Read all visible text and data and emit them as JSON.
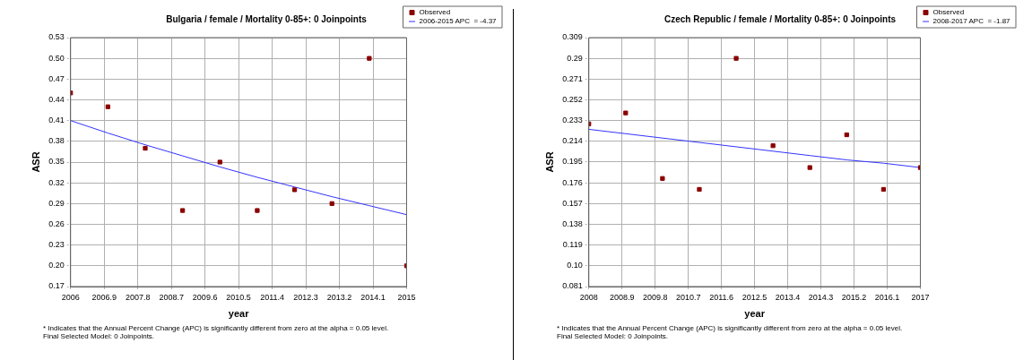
{
  "chart_data": [
    {
      "type": "scatter",
      "title": "Bulgaria / female / Mortality 0-85+: 0 Joinpoints",
      "xlabel": "year",
      "ylabel": "ASR",
      "x": [
        2006,
        2007,
        2008,
        2009,
        2010,
        2011,
        2012,
        2013,
        2014,
        2015
      ],
      "series": [
        {
          "name": "Observed",
          "type": "scatter",
          "color": "#8b0000",
          "marker": "square",
          "values": [
            0.45,
            0.43,
            0.37,
            0.28,
            0.35,
            0.28,
            0.31,
            0.29,
            0.5,
            0.2
          ]
        },
        {
          "name": "2006-2015 APC  = -4.37",
          "type": "line",
          "color": "#3333ff",
          "line_style": "solid",
          "marker": "none",
          "values": [
            0.41,
            0.392,
            0.375,
            0.359,
            0.343,
            0.328,
            0.314,
            0.3,
            0.287,
            0.274
          ]
        }
      ],
      "xlim": [
        2006,
        2015
      ],
      "xticks": [
        2006,
        2006.9,
        2007.8,
        2008.7,
        2009.6,
        2010.5,
        2011.4,
        2012.3,
        2013.2,
        2014.1,
        2015
      ],
      "ylim": [
        0.17,
        0.53
      ],
      "yticks": [
        0.17,
        {
          "value": 0.2,
          "label": "0.20"
        },
        0.23,
        0.26,
        0.29,
        0.32,
        0.35,
        0.38,
        0.41,
        0.44,
        0.47,
        {
          "value": 0.5,
          "label": "0.50"
        },
        0.53
      ],
      "grid": true,
      "legend": "top right",
      "annotations": [
        "* Indicates that the Annual Percent Change (APC) is significantly different from zero at the alpha = 0.05 level.",
        "Final Selected Model: 0 Joinpoints."
      ]
    },
    {
      "type": "scatter",
      "title": "Czech Republic / female / Mortality 0-85+: 0 Joinpoints",
      "xlabel": "year",
      "ylabel": "ASR",
      "x": [
        2008,
        2009,
        2010,
        2011,
        2012,
        2013,
        2014,
        2015,
        2016,
        2017
      ],
      "series": [
        {
          "name": "Observed",
          "type": "scatter",
          "color": "#8b0000",
          "marker": "square",
          "values": [
            0.23,
            0.24,
            0.18,
            0.17,
            0.29,
            0.21,
            0.19,
            0.22,
            0.17,
            0.19
          ]
        },
        {
          "name": "2008-2017 APC  = -1.87",
          "type": "line",
          "color": "#3333ff",
          "line_style": "solid",
          "marker": "none",
          "values": [
            0.225,
            0.221,
            0.217,
            0.213,
            0.209,
            0.205,
            0.201,
            0.197,
            0.194,
            0.19
          ]
        }
      ],
      "xlim": [
        2008,
        2017
      ],
      "xticks": [
        2008,
        2008.9,
        2009.8,
        2010.7,
        2011.6,
        2012.5,
        2013.4,
        2014.3,
        2015.2,
        2016.1,
        2017
      ],
      "ylim": [
        0.081,
        0.309
      ],
      "yticks": [
        0.081,
        {
          "value": 0.1,
          "label": "0.10"
        },
        0.119,
        0.138,
        0.157,
        0.176,
        0.195,
        0.214,
        0.233,
        0.252,
        0.271,
        0.29,
        0.309
      ],
      "grid": true,
      "legend": "top right",
      "annotations": [
        "* Indicates that the Annual Percent Change (APC) is significantly different from zero at the alpha = 0.05 level.",
        "Final Selected Model: 0 Joinpoints."
      ]
    }
  ]
}
